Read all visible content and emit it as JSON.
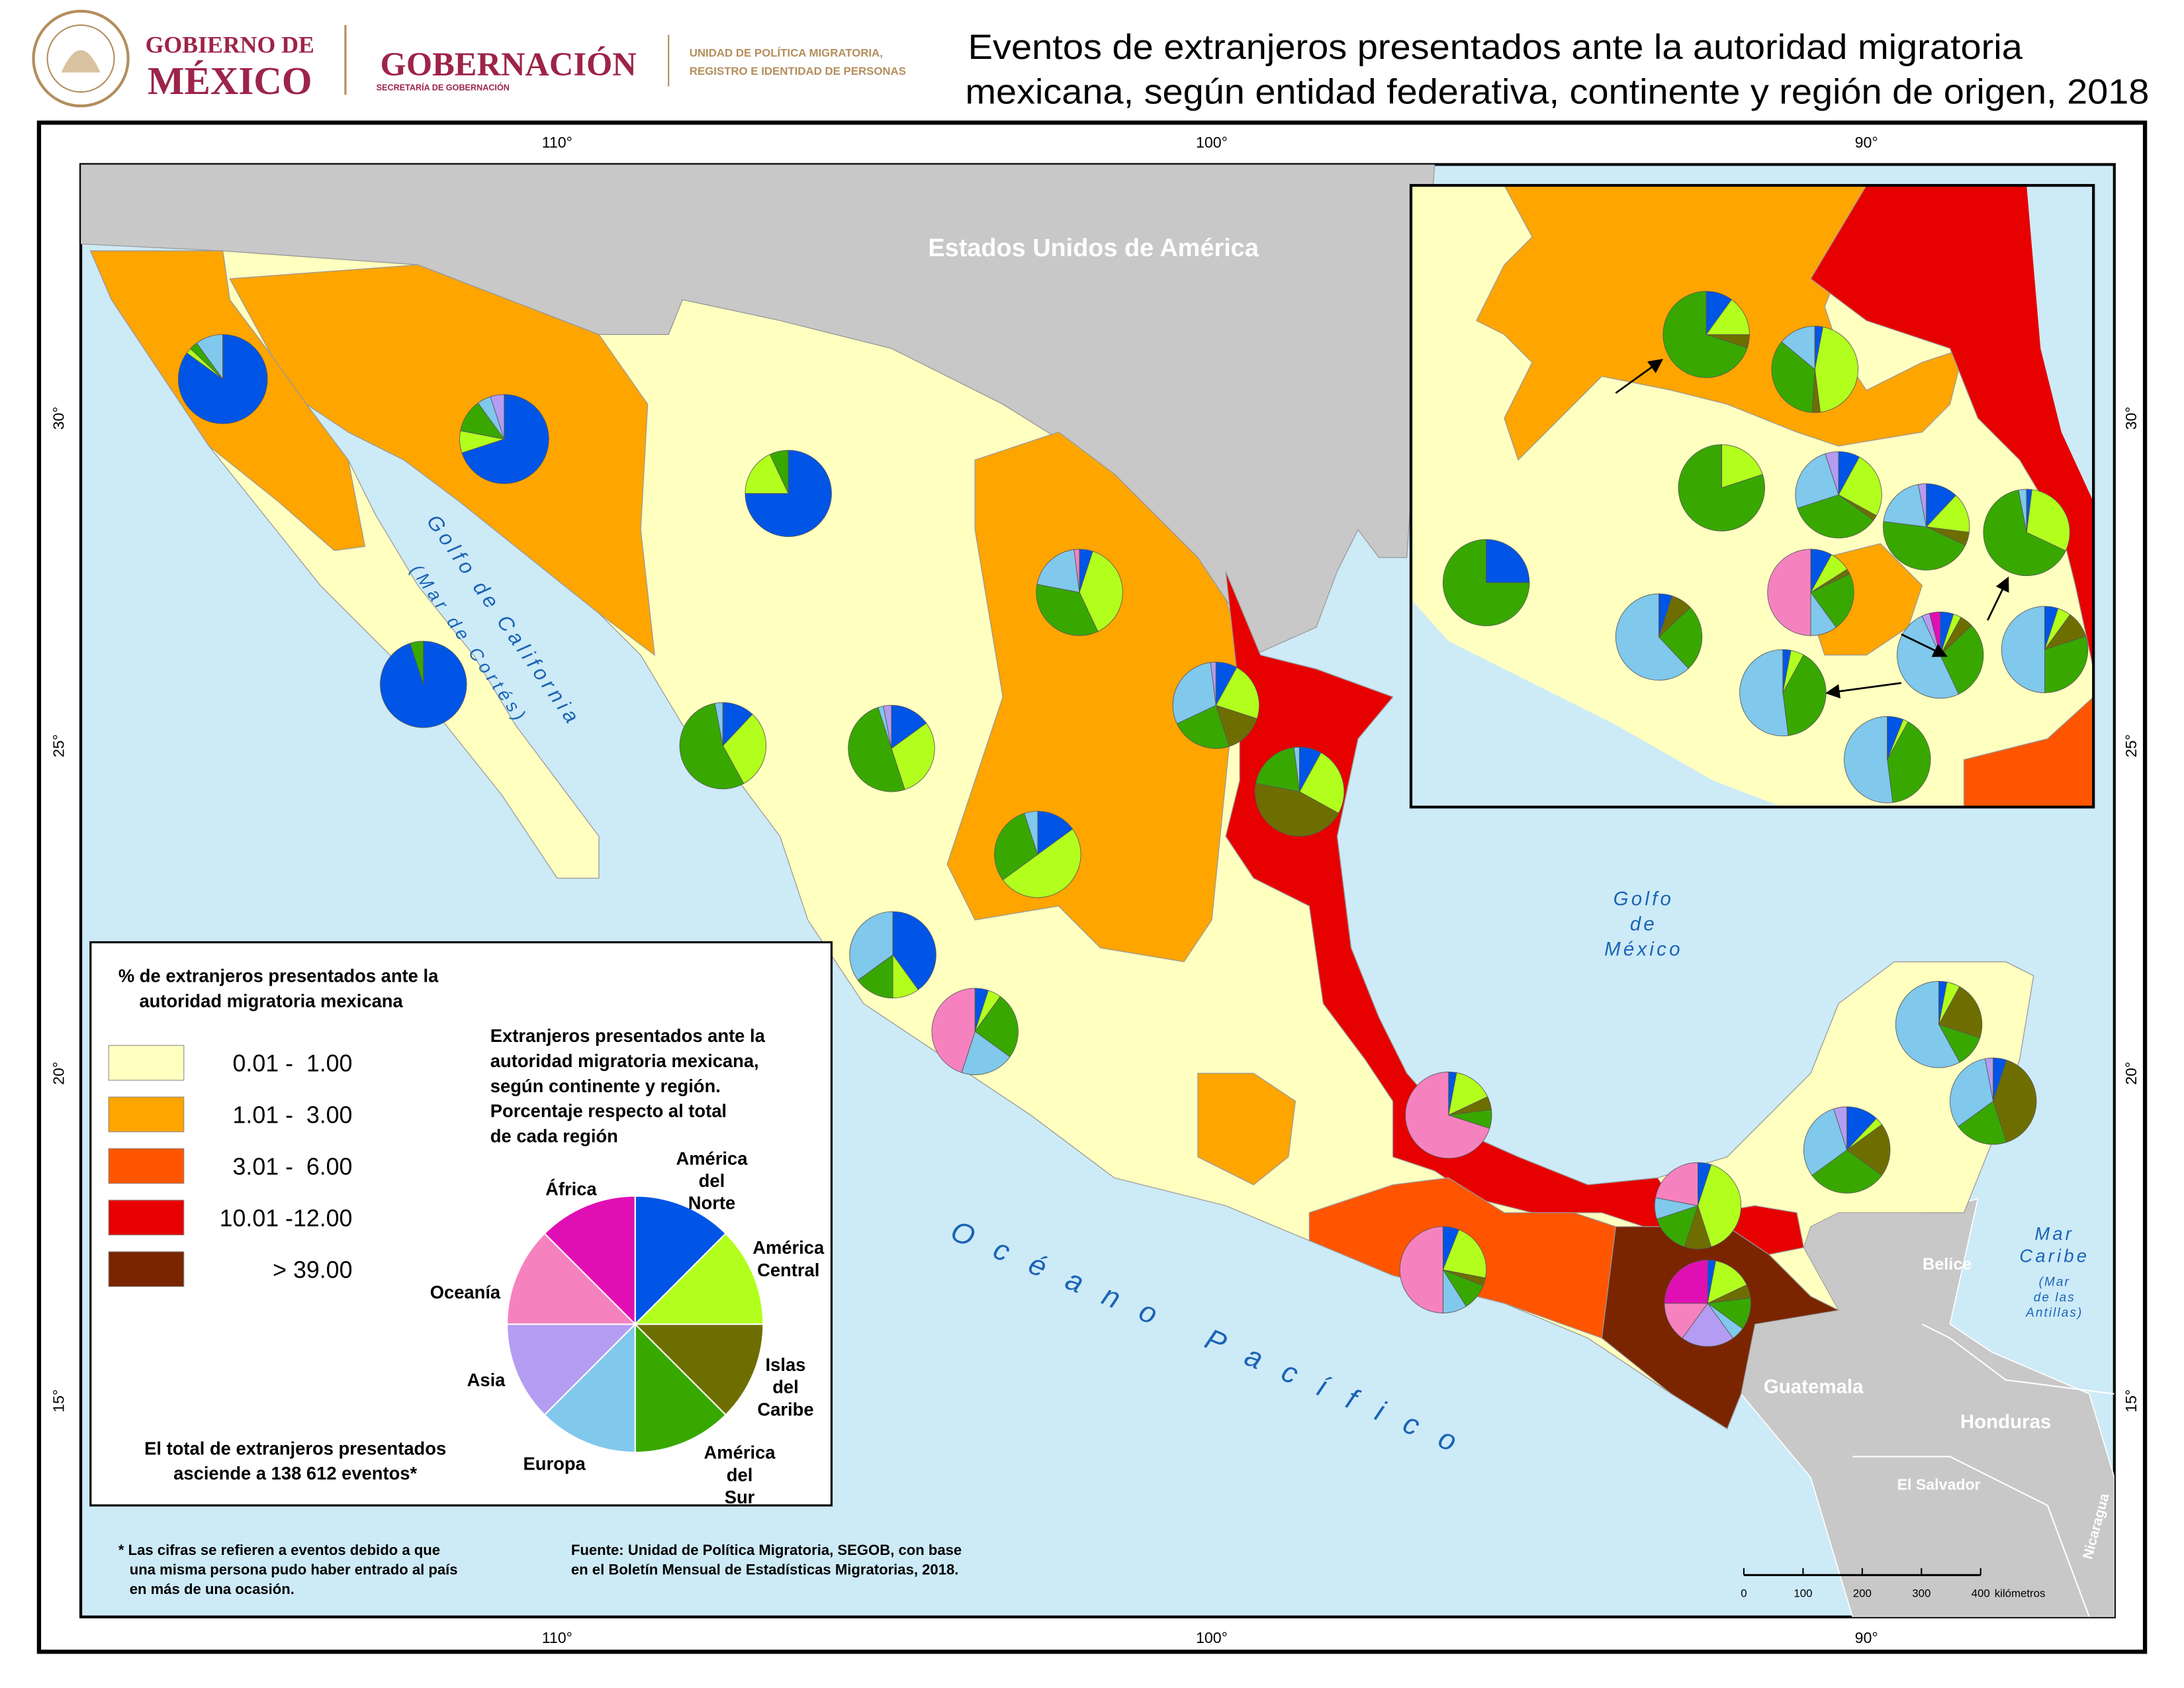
{
  "header": {
    "gov_line1": "GOBIERNO DE",
    "gov_line2": "MÉXICO",
    "ministry": "GOBERNACIÓN",
    "ministry_sub": "SECRETARÍA DE GOBERNACIÓN",
    "unit_lines": [
      "UNIDAD DE POLÍTICA MIGRATORIA,",
      "REGISTRO E IDENTIDAD DE PERSONAS"
    ],
    "title_lines": [
      "Eventos de extranjeros presentados ante la autoridad migratoria",
      "mexicana, según entidad federativa, continente y región de origen, 2018"
    ]
  },
  "map": {
    "lon_labels": [
      "110°",
      "100°",
      "90°"
    ],
    "lat_labels": [
      "30°",
      "25°",
      "20°",
      "15°"
    ],
    "places": {
      "usa": "Estados Unidos de América",
      "gulf_california": [
        "Golfo de California",
        "(Mar de Cortés)"
      ],
      "gulf_mexico": [
        "Golfo",
        "de",
        "México"
      ],
      "pacific": "Océano Pacífico",
      "caribbean": [
        "Mar",
        "Caribe",
        "(Mar",
        "de las",
        "Antillas)"
      ],
      "belize": "Belice",
      "guatemala": "Guatemala",
      "honduras": "Honduras",
      "el_salvador": "El Salvador",
      "nicaragua": "Nicaragua"
    },
    "legend": {
      "title_lines": [
        "% de extranjeros presentados ante la",
        "autoridad migratoria mexicana"
      ],
      "classes": [
        {
          "label": "0.01 -  1.00",
          "color": "#ffffc0"
        },
        {
          "label": "1.01 -  3.00",
          "color": "#ffa500"
        },
        {
          "label": "3.01 -  6.00",
          "color": "#ff5500"
        },
        {
          "label": "10.01 -12.00",
          "color": "#e60000"
        },
        {
          "label": "> 39.00",
          "color": "#7a2500"
        }
      ]
    },
    "pie_legend": {
      "title_lines": [
        "Extranjeros presentados ante la",
        "autoridad migratoria mexicana,",
        "según continente y región.",
        "Porcentaje respecto al total",
        "de cada región"
      ],
      "categories": [
        {
          "name_lines": [
            "América",
            "del",
            "Norte"
          ],
          "color": "#0055e6"
        },
        {
          "name_lines": [
            "América",
            "Central"
          ],
          "color": "#b2ff1e"
        },
        {
          "name_lines": [
            "Islas",
            "del",
            "Caribe"
          ],
          "color": "#6e6e00"
        },
        {
          "name_lines": [
            "América",
            "del",
            "Sur"
          ],
          "color": "#38a800"
        },
        {
          "name_lines": [
            "Europa"
          ],
          "color": "#80c8ec"
        },
        {
          "name_lines": [
            "Asia"
          ],
          "color": "#b49cf2"
        },
        {
          "name_lines": [
            "Oceanía"
          ],
          "color": "#f582bf"
        },
        {
          "name_lines": [
            "África"
          ],
          "color": "#e00fb4"
        }
      ]
    },
    "total_note": [
      "El total de extranjeros presentados",
      "asciende a 138 612 eventos*"
    ],
    "pies": [
      {
        "values": [
          85,
          2,
          0,
          3,
          10,
          0,
          0,
          0
        ]
      },
      {
        "values": [
          70,
          8,
          0,
          12,
          5,
          5,
          0,
          0
        ]
      },
      {
        "values": [
          75,
          18,
          0,
          7,
          0,
          0,
          0,
          0
        ]
      },
      {
        "values": [
          95,
          0,
          0,
          5,
          0,
          0,
          0,
          0
        ]
      },
      {
        "values": [
          5,
          38,
          0,
          35,
          20,
          0,
          2,
          0
        ]
      },
      {
        "values": [
          8,
          22,
          15,
          23,
          30,
          2,
          0,
          0
        ]
      },
      {
        "values": [
          12,
          30,
          0,
          55,
          3,
          0,
          0,
          0
        ]
      },
      {
        "values": [
          15,
          30,
          0,
          50,
          2,
          3,
          0,
          0
        ]
      },
      {
        "values": [
          8,
          25,
          45,
          20,
          2,
          0,
          0,
          0
        ]
      },
      {
        "values": [
          15,
          50,
          0,
          30,
          5,
          0,
          0,
          0
        ]
      },
      {
        "values": [
          40,
          10,
          0,
          15,
          35,
          0,
          0,
          0
        ]
      },
      {
        "values": [
          5,
          5,
          0,
          25,
          20,
          0,
          45,
          0
        ]
      },
      {
        "values": [
          3,
          15,
          5,
          7,
          0,
          0,
          70,
          0
        ]
      },
      {
        "values": [
          6,
          22,
          3,
          10,
          9,
          0,
          50,
          0
        ]
      },
      {
        "values": [
          5,
          40,
          10,
          15,
          8,
          0,
          22,
          0
        ]
      },
      {
        "values": [
          3,
          15,
          5,
          12,
          5,
          20,
          15,
          25
        ]
      },
      {
        "values": [
          12,
          3,
          20,
          30,
          30,
          5,
          0,
          0
        ]
      },
      {
        "values": [
          3,
          5,
          22,
          12,
          58,
          0,
          0,
          0
        ]
      },
      {
        "values": [
          5,
          0,
          40,
          20,
          32,
          3,
          0,
          0
        ]
      },
      {
        "values": [
          10,
          15,
          5,
          70,
          0,
          0,
          0,
          0
        ]
      },
      {
        "values": [
          3,
          45,
          3,
          35,
          14,
          0,
          0,
          0
        ]
      },
      {
        "values": [
          0,
          20,
          0,
          80,
          0,
          0,
          0,
          0
        ]
      },
      {
        "values": [
          8,
          25,
          2,
          35,
          25,
          5,
          0,
          0
        ]
      },
      {
        "values": [
          12,
          15,
          5,
          45,
          20,
          3,
          0,
          0
        ]
      },
      {
        "values": [
          2,
          30,
          0,
          65,
          3,
          0,
          0,
          0
        ]
      },
      {
        "values": [
          25,
          0,
          0,
          75,
          0,
          0,
          0,
          0
        ]
      },
      {
        "values": [
          8,
          8,
          2,
          22,
          10,
          0,
          50,
          0
        ]
      },
      {
        "values": [
          5,
          0,
          8,
          25,
          62,
          0,
          0,
          0
        ]
      },
      {
        "values": [
          5,
          3,
          5,
          30,
          50,
          3,
          0,
          4
        ]
      },
      {
        "values": [
          5,
          5,
          10,
          30,
          50,
          0,
          0,
          0
        ]
      },
      {
        "values": [
          3,
          5,
          0,
          40,
          52,
          0,
          0,
          0
        ]
      },
      {
        "values": [
          6,
          2,
          0,
          40,
          52,
          0,
          0,
          0
        ]
      }
    ],
    "scale_bar": {
      "ticks": [
        0,
        100,
        200,
        300,
        400
      ],
      "unit": "kilómetros"
    }
  },
  "footnote": [
    "* Las cifras se refieren a eventos debido a que",
    "una misma persona pudo haber entrado al país",
    "en más de una ocasión."
  ],
  "source": [
    "Fuente: Unidad de Política Migratoria, SEGOB, con base",
    "en el Boletín Mensual de Estadísticas Migratorias, 2018."
  ]
}
